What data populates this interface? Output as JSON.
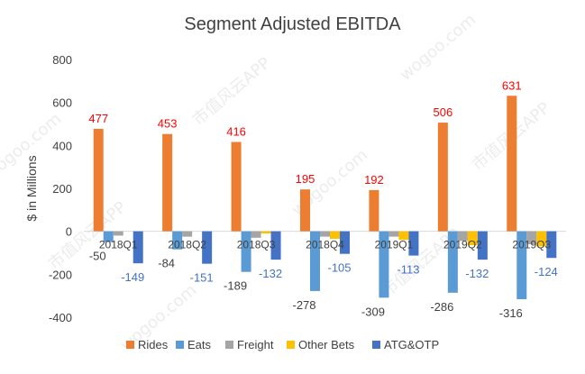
{
  "chart_data": {
    "type": "bar",
    "title": "Segment Adjusted EBITDA",
    "ylabel": "$ in Millions",
    "xlabel": "",
    "ylim": [
      -400,
      800
    ],
    "yticks": [
      -400,
      -200,
      0,
      200,
      400,
      600,
      800
    ],
    "grid": false,
    "legend_position": "bottom",
    "categories": [
      "2018Q1",
      "2018Q2",
      "2018Q3",
      "2018Q4",
      "2019Q1",
      "2019Q2",
      "2019Q3"
    ],
    "series": [
      {
        "name": "Rides",
        "color": "#ed7d31",
        "label_color": "#ff0000",
        "values": [
          477,
          453,
          416,
          195,
          192,
          506,
          631
        ],
        "labels": [
          "477",
          "453",
          "416",
          "195",
          "192",
          "506",
          "631"
        ]
      },
      {
        "name": "Eats",
        "color": "#5b9bd5",
        "label_color": "#404040",
        "values": [
          -50,
          -84,
          -189,
          -278,
          -309,
          -286,
          -316
        ],
        "labels": [
          "-50",
          "-84",
          "-189",
          "-278",
          "-309",
          "-286",
          "-316"
        ]
      },
      {
        "name": "Freight",
        "color": "#a5a5a5",
        "label_color": "#404040",
        "values": [
          -20,
          -25,
          -30,
          -25,
          -25,
          -45,
          -60
        ],
        "labels": []
      },
      {
        "name": "Other Bets",
        "color": "#ffc000",
        "label_color": "#404040",
        "values": [
          0,
          0,
          -10,
          -35,
          -40,
          -65,
          -70
        ],
        "labels": []
      },
      {
        "name": "ATG&OTP",
        "color": "#4472c4",
        "label_color": "#4472c4",
        "values": [
          -149,
          -151,
          -132,
          -105,
          -113,
          -132,
          -124
        ],
        "labels": [
          "-149",
          "-151",
          "-132",
          "-105",
          "-113",
          "-132",
          "-124"
        ]
      }
    ]
  },
  "watermark": {
    "site": "wogoo.com",
    "app": "市值风云APP"
  }
}
